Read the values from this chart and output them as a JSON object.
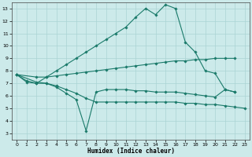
{
  "xlabel": "Humidex (Indice chaleur)",
  "background_color": "#cceaea",
  "grid_color": "#aad4d4",
  "line_color": "#1a7a6a",
  "xlim": [
    -0.5,
    23.5
  ],
  "ylim": [
    2.5,
    13.5
  ],
  "yticks": [
    3,
    4,
    5,
    6,
    7,
    8,
    9,
    10,
    11,
    12,
    13
  ],
  "xticks": [
    0,
    1,
    2,
    3,
    4,
    5,
    6,
    7,
    8,
    9,
    10,
    11,
    12,
    13,
    14,
    15,
    16,
    17,
    18,
    19,
    20,
    21,
    22,
    23
  ],
  "series": [
    {
      "x": [
        0,
        1,
        2,
        3,
        4,
        5,
        6,
        7,
        8,
        9,
        10,
        11,
        12,
        13,
        14,
        15,
        16,
        17,
        18,
        19,
        20,
        21,
        22
      ],
      "y": [
        7.7,
        7.2,
        7.0,
        7.5,
        8.0,
        8.5,
        9.0,
        9.5,
        10.0,
        10.5,
        11.0,
        11.5,
        12.3,
        13.0,
        12.5,
        13.3,
        13.0,
        10.3,
        9.5,
        8.0,
        7.8,
        6.5,
        6.3
      ]
    },
    {
      "x": [
        0,
        2,
        3,
        4,
        5,
        6,
        7,
        8,
        9,
        10,
        11,
        12,
        13,
        14,
        15,
        16,
        17,
        18,
        19,
        20,
        21,
        22
      ],
      "y": [
        7.7,
        7.5,
        7.5,
        7.6,
        7.7,
        7.8,
        7.9,
        8.0,
        8.1,
        8.2,
        8.3,
        8.4,
        8.5,
        8.6,
        8.7,
        8.8,
        8.8,
        8.9,
        8.9,
        9.0,
        9.0,
        9.0
      ]
    },
    {
      "x": [
        0,
        1,
        2,
        3,
        4,
        5,
        6,
        7,
        8,
        9,
        10,
        11,
        12,
        13,
        14,
        15,
        16,
        17,
        18,
        19,
        20,
        21,
        22
      ],
      "y": [
        7.7,
        7.1,
        7.0,
        7.0,
        6.7,
        6.2,
        5.7,
        3.2,
        6.3,
        6.5,
        6.5,
        6.5,
        6.4,
        6.4,
        6.3,
        6.3,
        6.3,
        6.2,
        6.1,
        6.0,
        5.9,
        6.5,
        6.3
      ]
    },
    {
      "x": [
        0,
        2,
        3,
        4,
        5,
        6,
        7,
        8,
        9,
        10,
        11,
        12,
        13,
        14,
        15,
        16,
        17,
        18,
        19,
        20,
        21,
        22,
        23
      ],
      "y": [
        7.7,
        7.1,
        7.0,
        6.8,
        6.5,
        6.2,
        5.8,
        5.5,
        5.5,
        5.5,
        5.5,
        5.5,
        5.5,
        5.5,
        5.5,
        5.5,
        5.4,
        5.4,
        5.3,
        5.3,
        5.2,
        5.1,
        5.0
      ]
    }
  ]
}
